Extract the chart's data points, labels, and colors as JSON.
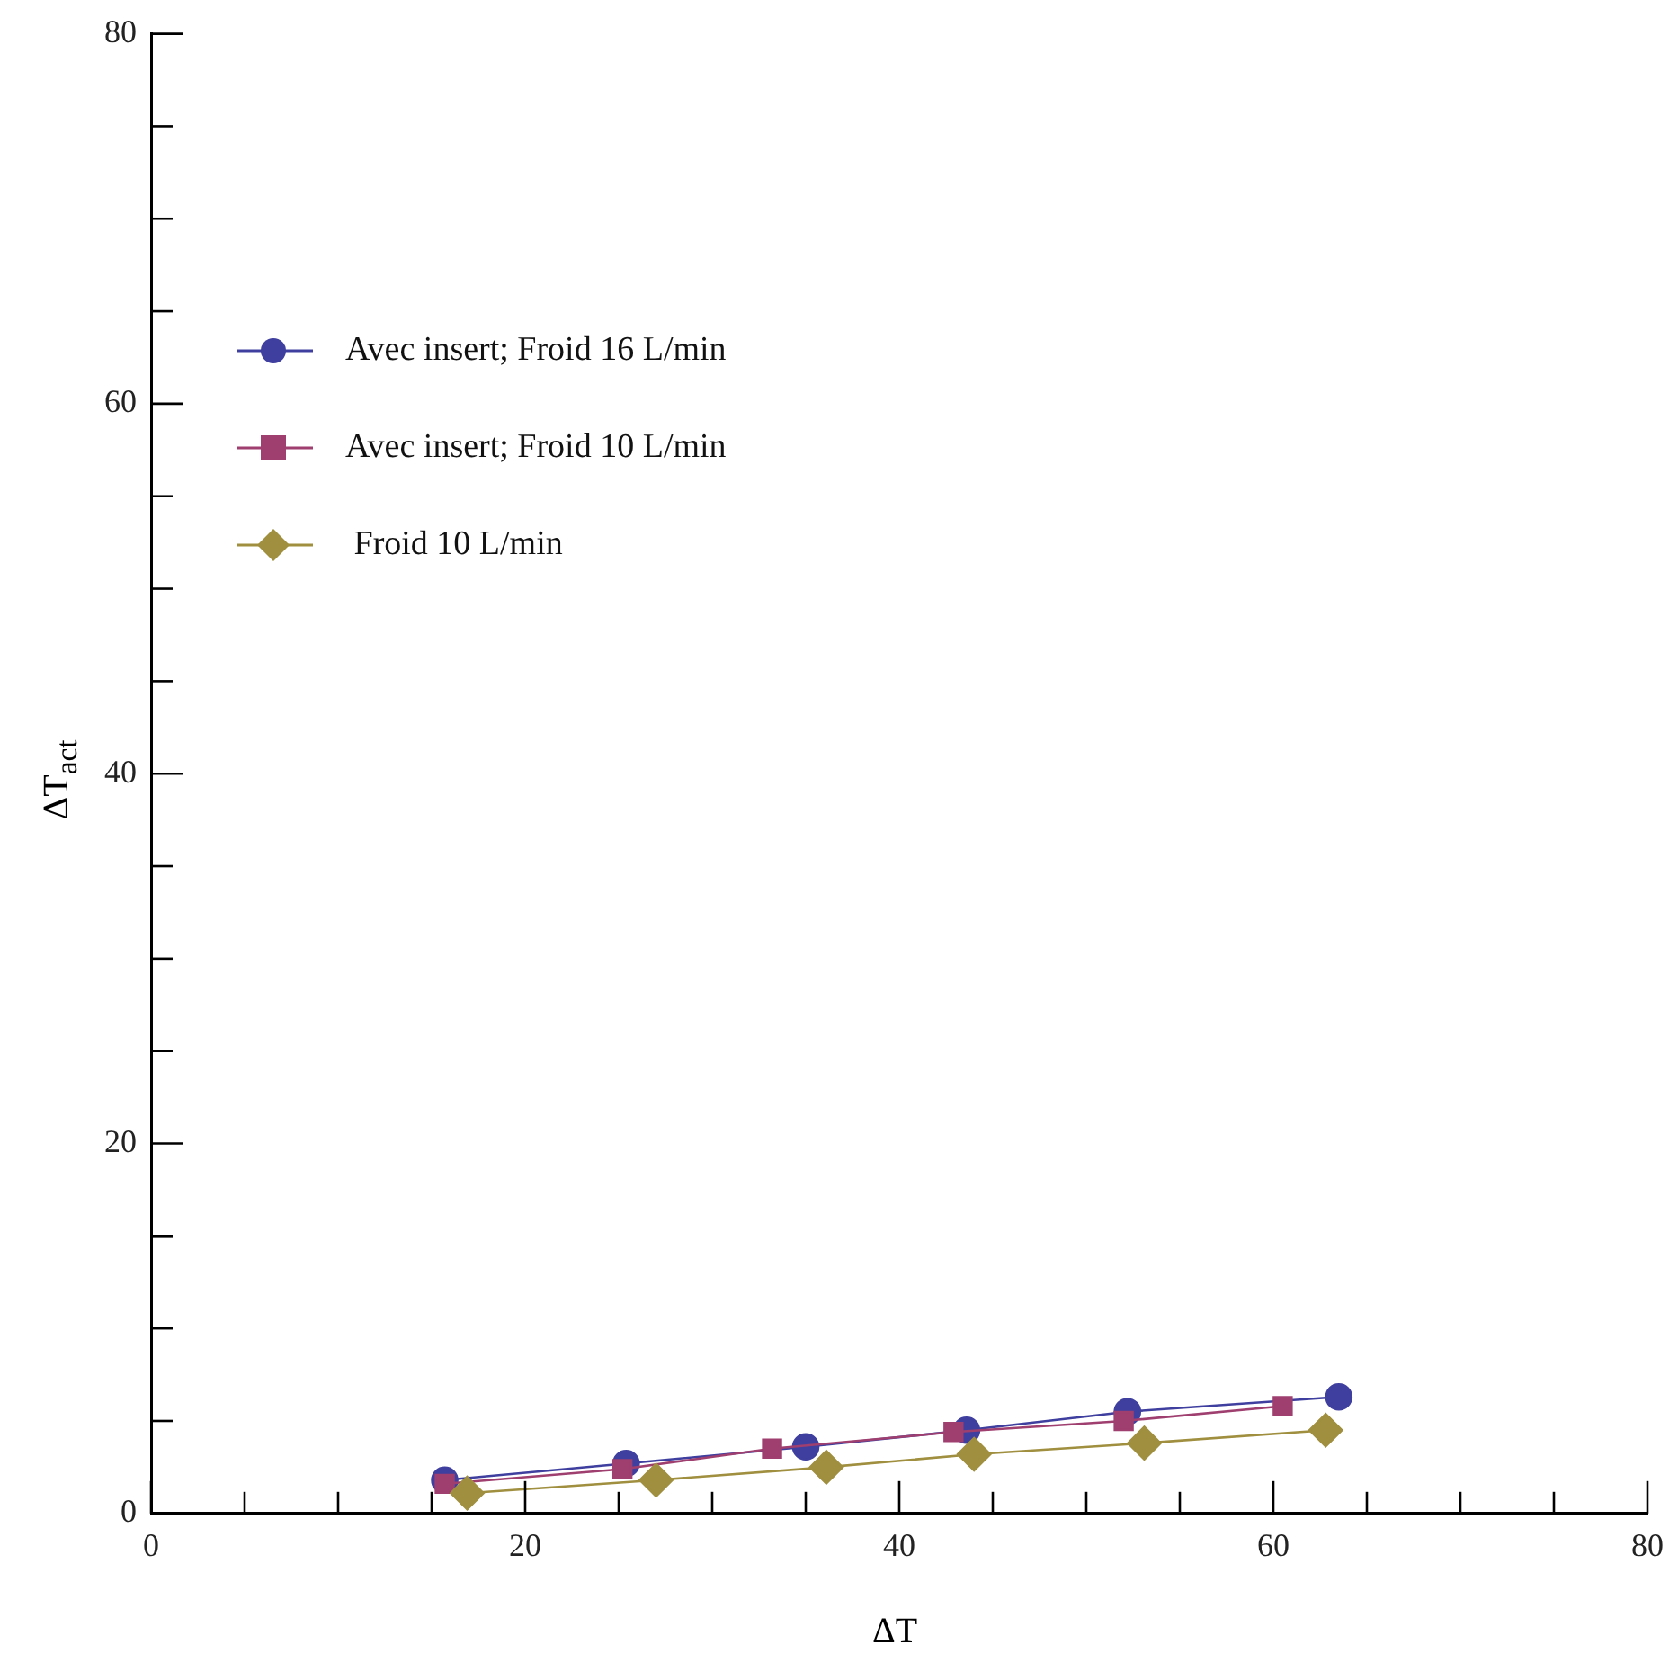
{
  "chart_data": {
    "type": "line",
    "xlabel": "ΔT",
    "ylabel": "ΔT$_{act}$",
    "xlim": [
      0,
      80
    ],
    "ylim": [
      0,
      80
    ],
    "xticks": [
      0,
      {
        "value": 5,
        "label": null
      },
      {
        "value": 10,
        "label": null
      },
      {
        "value": 15,
        "label": null
      },
      20,
      {
        "value": 25,
        "label": null
      },
      {
        "value": 30,
        "label": null
      },
      {
        "value": 35,
        "label": null
      },
      40,
      {
        "value": 45,
        "label": null
      },
      {
        "value": 50,
        "label": null
      },
      {
        "value": 55,
        "label": null
      },
      60,
      {
        "value": 65,
        "label": null
      },
      {
        "value": 70,
        "label": null
      },
      {
        "value": 75,
        "label": null
      },
      80
    ],
    "yticks": [
      0,
      {
        "value": 5,
        "label": null
      },
      {
        "value": 10,
        "label": null
      },
      {
        "value": 15,
        "label": null
      },
      20,
      {
        "value": 25,
        "label": null
      },
      {
        "value": 30,
        "label": null
      },
      {
        "value": 35,
        "label": null
      },
      40,
      {
        "value": 45,
        "label": null
      },
      {
        "value": 50,
        "label": null
      },
      {
        "value": 55,
        "label": null
      },
      60,
      {
        "value": 65,
        "label": null
      },
      {
        "value": 70,
        "label": null
      },
      {
        "value": 75,
        "label": null
      },
      80
    ],
    "grid": false,
    "legend": "top left",
    "line_style": "solid",
    "series": [
      {
        "name": "Avec insert; Froid 16 L/min",
        "color": "#3f3f9f",
        "marker": "circle",
        "x": [
          15.7,
          25.4,
          35.0,
          43.6,
          52.2,
          63.5
        ],
        "values": [
          1.8,
          2.7,
          3.6,
          4.5,
          5.5,
          6.3
        ]
      },
      {
        "name": "Avec insert; Froid 10 L/min",
        "color": "#9f3f6f",
        "marker": "square",
        "x": [
          15.7,
          25.2,
          33.2,
          42.9,
          52.0,
          60.5
        ],
        "values": [
          1.6,
          2.4,
          3.5,
          4.4,
          5.0,
          5.8
        ]
      },
      {
        "name": " Froid 10 L/min",
        "color": "#9f8f3f",
        "marker": "diamond",
        "x": [
          16.9,
          27.0,
          36.1,
          44.0,
          53.1,
          62.8
        ],
        "values": [
          1.1,
          1.8,
          2.5,
          3.2,
          3.8,
          4.5
        ]
      }
    ]
  }
}
